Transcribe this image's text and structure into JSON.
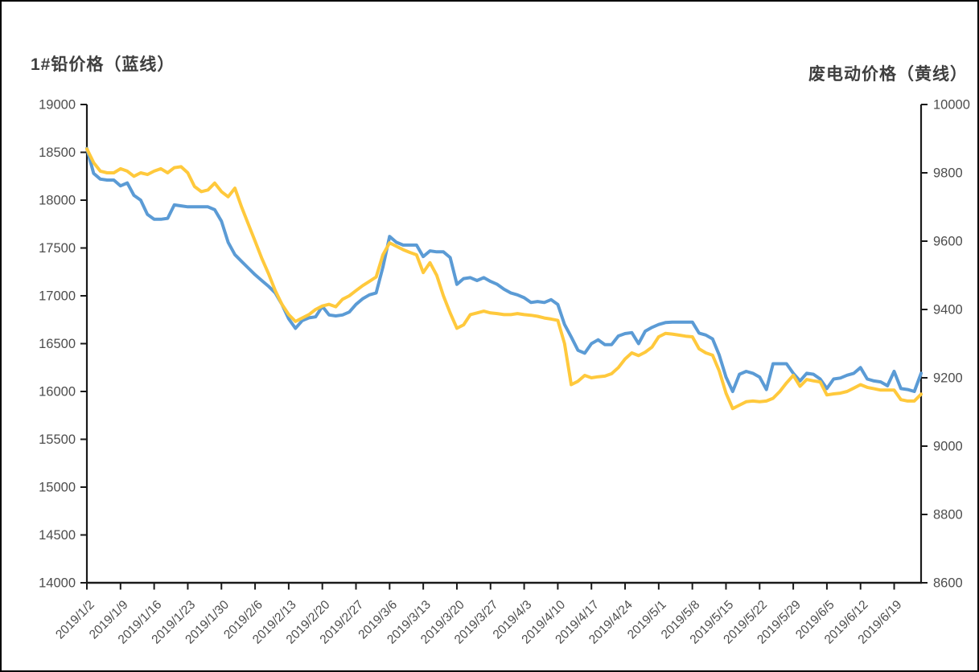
{
  "titles": {
    "left": "1#铅价格（蓝线）",
    "right": "废电动价格（黄线）"
  },
  "colors": {
    "blue_line": "#5B9BD5",
    "yellow_line": "#FFC93C",
    "axis": "#1a1a1a",
    "tick_label": "#4d4d4d",
    "title_text": "#3f3f3f",
    "background": "#ffffff"
  },
  "chart_data": {
    "type": "line",
    "title": "",
    "grid": false,
    "legend_position": "none",
    "x": [
      "2019/1/2",
      "2019/1/3",
      "2019/1/4",
      "2019/1/7",
      "2019/1/8",
      "2019/1/9",
      "2019/1/10",
      "2019/1/11",
      "2019/1/14",
      "2019/1/15",
      "2019/1/16",
      "2019/1/17",
      "2019/1/18",
      "2019/1/21",
      "2019/1/22",
      "2019/1/23",
      "2019/1/24",
      "2019/1/25",
      "2019/1/28",
      "2019/1/29",
      "2019/1/30",
      "2019/1/31",
      "2019/2/1",
      "2019/2/4",
      "2019/2/5",
      "2019/2/6",
      "2019/2/7",
      "2019/2/8",
      "2019/2/11",
      "2019/2/12",
      "2019/2/13",
      "2019/2/14",
      "2019/2/15",
      "2019/2/18",
      "2019/2/19",
      "2019/2/20",
      "2019/2/21",
      "2019/2/22",
      "2019/2/25",
      "2019/2/26",
      "2019/2/27",
      "2019/2/28",
      "2019/3/1",
      "2019/3/4",
      "2019/3/5",
      "2019/3/6",
      "2019/3/7",
      "2019/3/8",
      "2019/3/11",
      "2019/3/12",
      "2019/3/13",
      "2019/3/14",
      "2019/3/15",
      "2019/3/18",
      "2019/3/19",
      "2019/3/20",
      "2019/3/21",
      "2019/3/22",
      "2019/3/25",
      "2019/3/26",
      "2019/3/27",
      "2019/3/28",
      "2019/3/29",
      "2019/4/1",
      "2019/4/2",
      "2019/4/3",
      "2019/4/4",
      "2019/4/5",
      "2019/4/8",
      "2019/4/9",
      "2019/4/10",
      "2019/4/11",
      "2019/4/12",
      "2019/4/15",
      "2019/4/16",
      "2019/4/17",
      "2019/4/18",
      "2019/4/19",
      "2019/4/22",
      "2019/4/23",
      "2019/4/24",
      "2019/4/25",
      "2019/4/26",
      "2019/4/29",
      "2019/4/30",
      "2019/5/1",
      "2019/5/2",
      "2019/5/3",
      "2019/5/6",
      "2019/5/7",
      "2019/5/8",
      "2019/5/9",
      "2019/5/10",
      "2019/5/13",
      "2019/5/14",
      "2019/5/15",
      "2019/5/16",
      "2019/5/17",
      "2019/5/20",
      "2019/5/21",
      "2019/5/22",
      "2019/5/23",
      "2019/5/24",
      "2019/5/27",
      "2019/5/28",
      "2019/5/29",
      "2019/5/30",
      "2019/5/31",
      "2019/6/3",
      "2019/6/4",
      "2019/6/5",
      "2019/6/6",
      "2019/6/7",
      "2019/6/10",
      "2019/6/11",
      "2019/6/12",
      "2019/6/13",
      "2019/6/14",
      "2019/6/17",
      "2019/6/18",
      "2019/6/19",
      "2019/6/20",
      "2019/6/21",
      "2019/6/24",
      "2019/6/25"
    ],
    "x_tick_labels": [
      "2019/1/2",
      "2019/1/9",
      "2019/1/16",
      "2019/1/23",
      "2019/1/30",
      "2019/2/6",
      "2019/2/13",
      "2019/2/20",
      "2019/2/27",
      "2019/3/6",
      "2019/3/13",
      "2019/3/20",
      "2019/3/27",
      "2019/4/3",
      "2019/4/10",
      "2019/4/17",
      "2019/4/24",
      "2019/5/1",
      "2019/5/8",
      "2019/5/15",
      "2019/5/22",
      "2019/5/29",
      "2019/6/5",
      "2019/6/12",
      "2019/6/19"
    ],
    "x_tick_every_n_points": 5,
    "left_axis": {
      "title": "1#铅价格（蓝线）",
      "min": 14000,
      "max": 19000,
      "step": 500,
      "tick_labels": [
        "19000",
        "18500",
        "18000",
        "17500",
        "17000",
        "16500",
        "16000",
        "15500",
        "15000",
        "14500",
        "14000"
      ]
    },
    "right_axis": {
      "title": "废电动价格（黄线）",
      "min": 8600,
      "max": 10000,
      "step": 200,
      "tick_labels": [
        "10000",
        "9800",
        "9600",
        "9400",
        "9200",
        "9000",
        "8800",
        "8600"
      ]
    },
    "series": [
      {
        "name": "1#铅价格",
        "axis": "left",
        "color": "#5B9BD5",
        "values": [
          18540,
          18280,
          18220,
          18210,
          18210,
          18150,
          18180,
          18050,
          18000,
          17850,
          17800,
          17800,
          17810,
          17950,
          17940,
          17930,
          17930,
          17930,
          17930,
          17900,
          17780,
          17560,
          17430,
          17360,
          17290,
          17220,
          17160,
          17100,
          17030,
          16910,
          16760,
          16660,
          16740,
          16770,
          16780,
          16890,
          16800,
          16790,
          16800,
          16830,
          16910,
          16970,
          17010,
          17030,
          17300,
          17620,
          17560,
          17530,
          17530,
          17530,
          17410,
          17470,
          17460,
          17460,
          17400,
          17120,
          17180,
          17190,
          17160,
          17190,
          17150,
          17120,
          17070,
          17030,
          17010,
          16980,
          16930,
          16940,
          16930,
          16960,
          16910,
          16700,
          16570,
          16430,
          16400,
          16500,
          16540,
          16490,
          16490,
          16580,
          16605,
          16615,
          16500,
          16630,
          16670,
          16700,
          16720,
          16725,
          16725,
          16725,
          16725,
          16610,
          16590,
          16550,
          16380,
          16150,
          16000,
          16180,
          16210,
          16190,
          16150,
          16020,
          16290,
          16290,
          16290,
          16190,
          16110,
          16190,
          16180,
          16130,
          16030,
          16130,
          16140,
          16170,
          16190,
          16250,
          16130,
          16110,
          16100,
          16060,
          16210,
          16030,
          16020,
          16000,
          16190
        ]
      },
      {
        "name": "废电动价格",
        "axis": "right",
        "color": "#FFC93C",
        "values": [
          9870,
          9830,
          9805,
          9800,
          9800,
          9812,
          9805,
          9790,
          9800,
          9795,
          9805,
          9812,
          9800,
          9815,
          9818,
          9800,
          9760,
          9745,
          9750,
          9770,
          9745,
          9730,
          9755,
          9700,
          9650,
          9600,
          9550,
          9505,
          9455,
          9415,
          9385,
          9365,
          9375,
          9385,
          9400,
          9410,
          9415,
          9408,
          9430,
          9440,
          9455,
          9470,
          9482,
          9495,
          9560,
          9595,
          9585,
          9575,
          9567,
          9560,
          9508,
          9537,
          9500,
          9440,
          9390,
          9345,
          9355,
          9385,
          9390,
          9395,
          9390,
          9388,
          9385,
          9385,
          9388,
          9385,
          9383,
          9380,
          9375,
          9372,
          9368,
          9300,
          9180,
          9190,
          9207,
          9200,
          9203,
          9205,
          9212,
          9230,
          9255,
          9273,
          9265,
          9275,
          9290,
          9320,
          9330,
          9328,
          9325,
          9322,
          9320,
          9285,
          9273,
          9266,
          9220,
          9155,
          9110,
          9120,
          9130,
          9132,
          9130,
          9132,
          9140,
          9160,
          9185,
          9207,
          9175,
          9195,
          9191,
          9188,
          9150,
          9153,
          9155,
          9160,
          9170,
          9180,
          9172,
          9168,
          9164,
          9164,
          9164,
          9136,
          9132,
          9132,
          9152
        ]
      }
    ]
  }
}
